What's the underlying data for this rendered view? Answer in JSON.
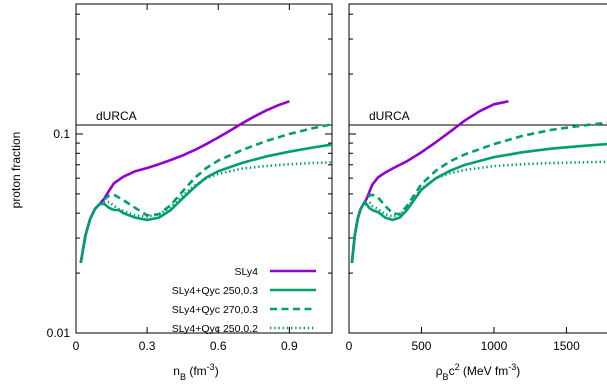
{
  "chart_data": [
    {
      "type": "line",
      "xlabel": "n_B (fm^-3)",
      "xlabel_parts": {
        "base": "n",
        "sub": "B",
        "units_pre": " (fm",
        "sup": "-3",
        "units_post": ")"
      },
      "ylabel": "proton fraction",
      "yscale": "log",
      "xlim": [
        0,
        1.08
      ],
      "ylim": [
        0.01,
        0.45
      ],
      "xticks": [
        0,
        0.3,
        0.6,
        0.9
      ],
      "xtick_labels": [
        "0",
        "0.3",
        "0.6",
        "0.9"
      ],
      "yticks": [
        0.01,
        0.1
      ],
      "ytick_labels": [
        "0.01",
        "0.1"
      ],
      "annotations": [
        {
          "text": "dURCA",
          "y": 0.111
        }
      ],
      "legend": {
        "placement": "bottom-right"
      },
      "series": [
        {
          "name": "SLy4",
          "color": "#9400d3",
          "dash": "solid",
          "x": [
            0.02,
            0.04,
            0.06,
            0.08,
            0.1,
            0.12,
            0.14,
            0.16,
            0.2,
            0.25,
            0.3,
            0.35,
            0.4,
            0.45,
            0.5,
            0.55,
            0.6,
            0.65,
            0.7,
            0.75,
            0.8,
            0.85,
            0.9
          ],
          "y": [
            0.0225,
            0.031,
            0.0375,
            0.042,
            0.0445,
            0.0475,
            0.052,
            0.0565,
            0.061,
            0.065,
            0.0675,
            0.0705,
            0.074,
            0.078,
            0.083,
            0.089,
            0.096,
            0.104,
            0.113,
            0.122,
            0.131,
            0.139,
            0.146
          ]
        },
        {
          "name": "SLy4+Qyc 250,0.3",
          "color": "#009e73",
          "dash": "solid",
          "x": [
            0.02,
            0.04,
            0.06,
            0.08,
            0.1,
            0.12,
            0.14,
            0.16,
            0.18,
            0.2,
            0.25,
            0.3,
            0.35,
            0.4,
            0.45,
            0.5,
            0.55,
            0.6,
            0.7,
            0.8,
            0.9,
            1.0,
            1.08
          ],
          "y": [
            0.0225,
            0.031,
            0.0375,
            0.042,
            0.0445,
            0.0445,
            0.0425,
            0.0415,
            0.0415,
            0.04,
            0.038,
            0.037,
            0.038,
            0.0415,
            0.0475,
            0.054,
            0.0605,
            0.065,
            0.0715,
            0.077,
            0.0815,
            0.0855,
            0.0885
          ]
        },
        {
          "name": "SLy4+Qyc 270,0.3",
          "color": "#009e73",
          "dash": "dashed",
          "x": [
            0.02,
            0.04,
            0.06,
            0.08,
            0.1,
            0.12,
            0.14,
            0.16,
            0.18,
            0.2,
            0.25,
            0.3,
            0.35,
            0.4,
            0.45,
            0.5,
            0.55,
            0.6,
            0.7,
            0.8,
            0.9,
            1.0,
            1.08
          ],
          "y": [
            0.0225,
            0.031,
            0.0375,
            0.042,
            0.0445,
            0.047,
            0.049,
            0.0495,
            0.048,
            0.0465,
            0.0425,
            0.039,
            0.0395,
            0.044,
            0.0515,
            0.06,
            0.0675,
            0.0735,
            0.083,
            0.092,
            0.1,
            0.107,
            0.112
          ]
        },
        {
          "name": "SLy4+Qyc 250,0.2",
          "color": "#009e73",
          "dash": "dotted",
          "x": [
            0.02,
            0.04,
            0.06,
            0.08,
            0.1,
            0.12,
            0.14,
            0.16,
            0.18,
            0.2,
            0.25,
            0.3,
            0.35,
            0.4,
            0.45,
            0.5,
            0.55,
            0.6,
            0.7,
            0.8,
            0.9,
            1.0,
            1.08
          ],
          "y": [
            0.0225,
            0.031,
            0.0375,
            0.042,
            0.0445,
            0.0455,
            0.0455,
            0.0435,
            0.042,
            0.041,
            0.039,
            0.0385,
            0.0395,
            0.043,
            0.049,
            0.055,
            0.06,
            0.063,
            0.067,
            0.069,
            0.0705,
            0.0715,
            0.072
          ]
        }
      ]
    },
    {
      "type": "line",
      "xlabel": "ρ_B c^2 (MeV fm^-3)",
      "xlabel_parts": {
        "base": "ρ",
        "sub": "B",
        "mid": "c",
        "sup1": "2",
        "units_pre": " (MeV fm",
        "sup2": "-3",
        "units_post": ")"
      },
      "ylabel": "",
      "yscale": "log",
      "xlim": [
        0,
        1780
      ],
      "ylim": [
        0.01,
        0.45
      ],
      "xticks": [
        0,
        500,
        1000,
        1500
      ],
      "xtick_labels": [
        "0",
        "500",
        "1000",
        "1500"
      ],
      "annotations": [
        {
          "text": "dURCA",
          "y": 0.111
        }
      ],
      "series": [
        {
          "name": "SLy4",
          "color": "#9400d3",
          "dash": "solid",
          "x": [
            20,
            40,
            60,
            80,
            100,
            120,
            140,
            160,
            200,
            250,
            300,
            400,
            500,
            600,
            700,
            800,
            900,
            1000,
            1100
          ],
          "y": [
            0.0225,
            0.031,
            0.0375,
            0.042,
            0.0445,
            0.047,
            0.051,
            0.0555,
            0.0605,
            0.064,
            0.067,
            0.073,
            0.081,
            0.091,
            0.103,
            0.117,
            0.13,
            0.141,
            0.146
          ]
        },
        {
          "name": "SLy4+Qyc 250,0.3",
          "color": "#009e73",
          "dash": "solid",
          "x": [
            20,
            40,
            60,
            80,
            100,
            120,
            140,
            160,
            200,
            250,
            300,
            350,
            400,
            500,
            600,
            700,
            800,
            1000,
            1200,
            1400,
            1600,
            1780
          ],
          "y": [
            0.0225,
            0.031,
            0.0375,
            0.042,
            0.0445,
            0.0445,
            0.0425,
            0.0415,
            0.0405,
            0.038,
            0.037,
            0.038,
            0.0415,
            0.0525,
            0.06,
            0.0655,
            0.07,
            0.0765,
            0.081,
            0.0845,
            0.087,
            0.089
          ]
        },
        {
          "name": "SLy4+Qyc 270,0.3",
          "color": "#009e73",
          "dash": "dashed",
          "x": [
            20,
            40,
            60,
            80,
            100,
            120,
            140,
            160,
            200,
            250,
            300,
            350,
            400,
            500,
            600,
            700,
            800,
            1000,
            1200,
            1400,
            1600,
            1780
          ],
          "y": [
            0.0225,
            0.031,
            0.0375,
            0.042,
            0.0445,
            0.047,
            0.049,
            0.0495,
            0.048,
            0.0435,
            0.04,
            0.0395,
            0.0435,
            0.056,
            0.0655,
            0.073,
            0.079,
            0.089,
            0.098,
            0.105,
            0.11,
            0.114
          ]
        },
        {
          "name": "SLy4+Qyc 250,0.2",
          "color": "#009e73",
          "dash": "dotted",
          "x": [
            20,
            40,
            60,
            80,
            100,
            120,
            140,
            160,
            200,
            250,
            300,
            350,
            400,
            500,
            600,
            700,
            800,
            1000,
            1200,
            1400,
            1600,
            1780
          ],
          "y": [
            0.0225,
            0.031,
            0.0375,
            0.042,
            0.0445,
            0.0455,
            0.0455,
            0.0435,
            0.042,
            0.0395,
            0.0385,
            0.0395,
            0.0425,
            0.053,
            0.06,
            0.0635,
            0.066,
            0.069,
            0.0705,
            0.0715,
            0.072,
            0.0725
          ]
        }
      ]
    }
  ]
}
